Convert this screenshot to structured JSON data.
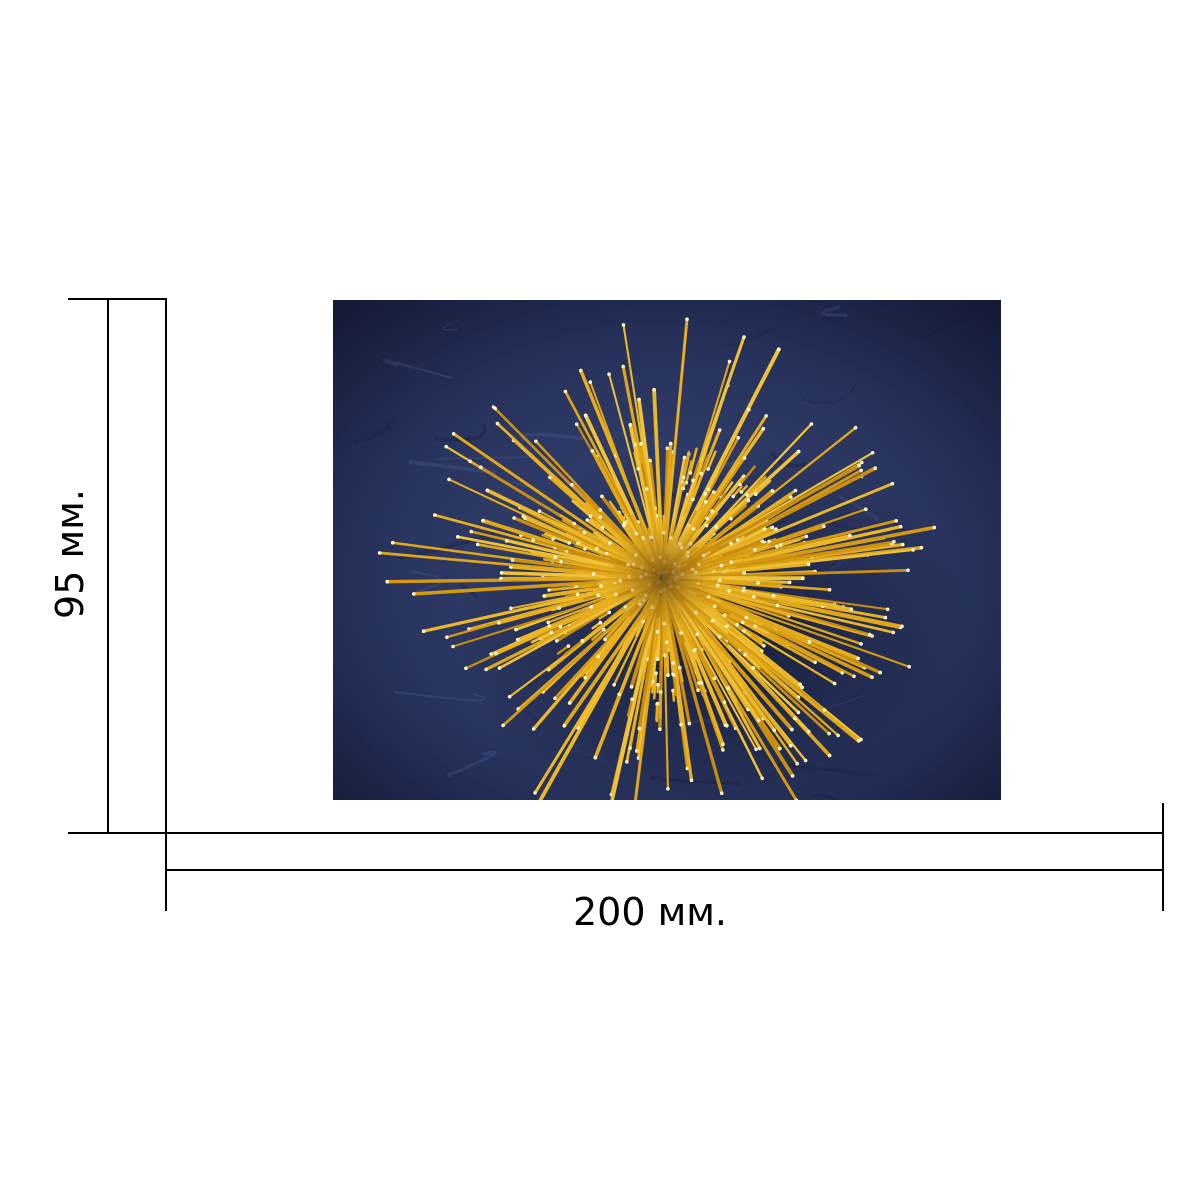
{
  "dimensions": {
    "width_label": "200 мм.",
    "height_label": "95 мм."
  },
  "product_photo": {
    "subject": "spaghetti-bundle",
    "background_color": "#1f2a4f",
    "pasta_color": "#e8b020",
    "pasta_tip_color": "#fff6c8"
  },
  "colors": {
    "line": "#000000",
    "page_background": "#ffffff"
  }
}
